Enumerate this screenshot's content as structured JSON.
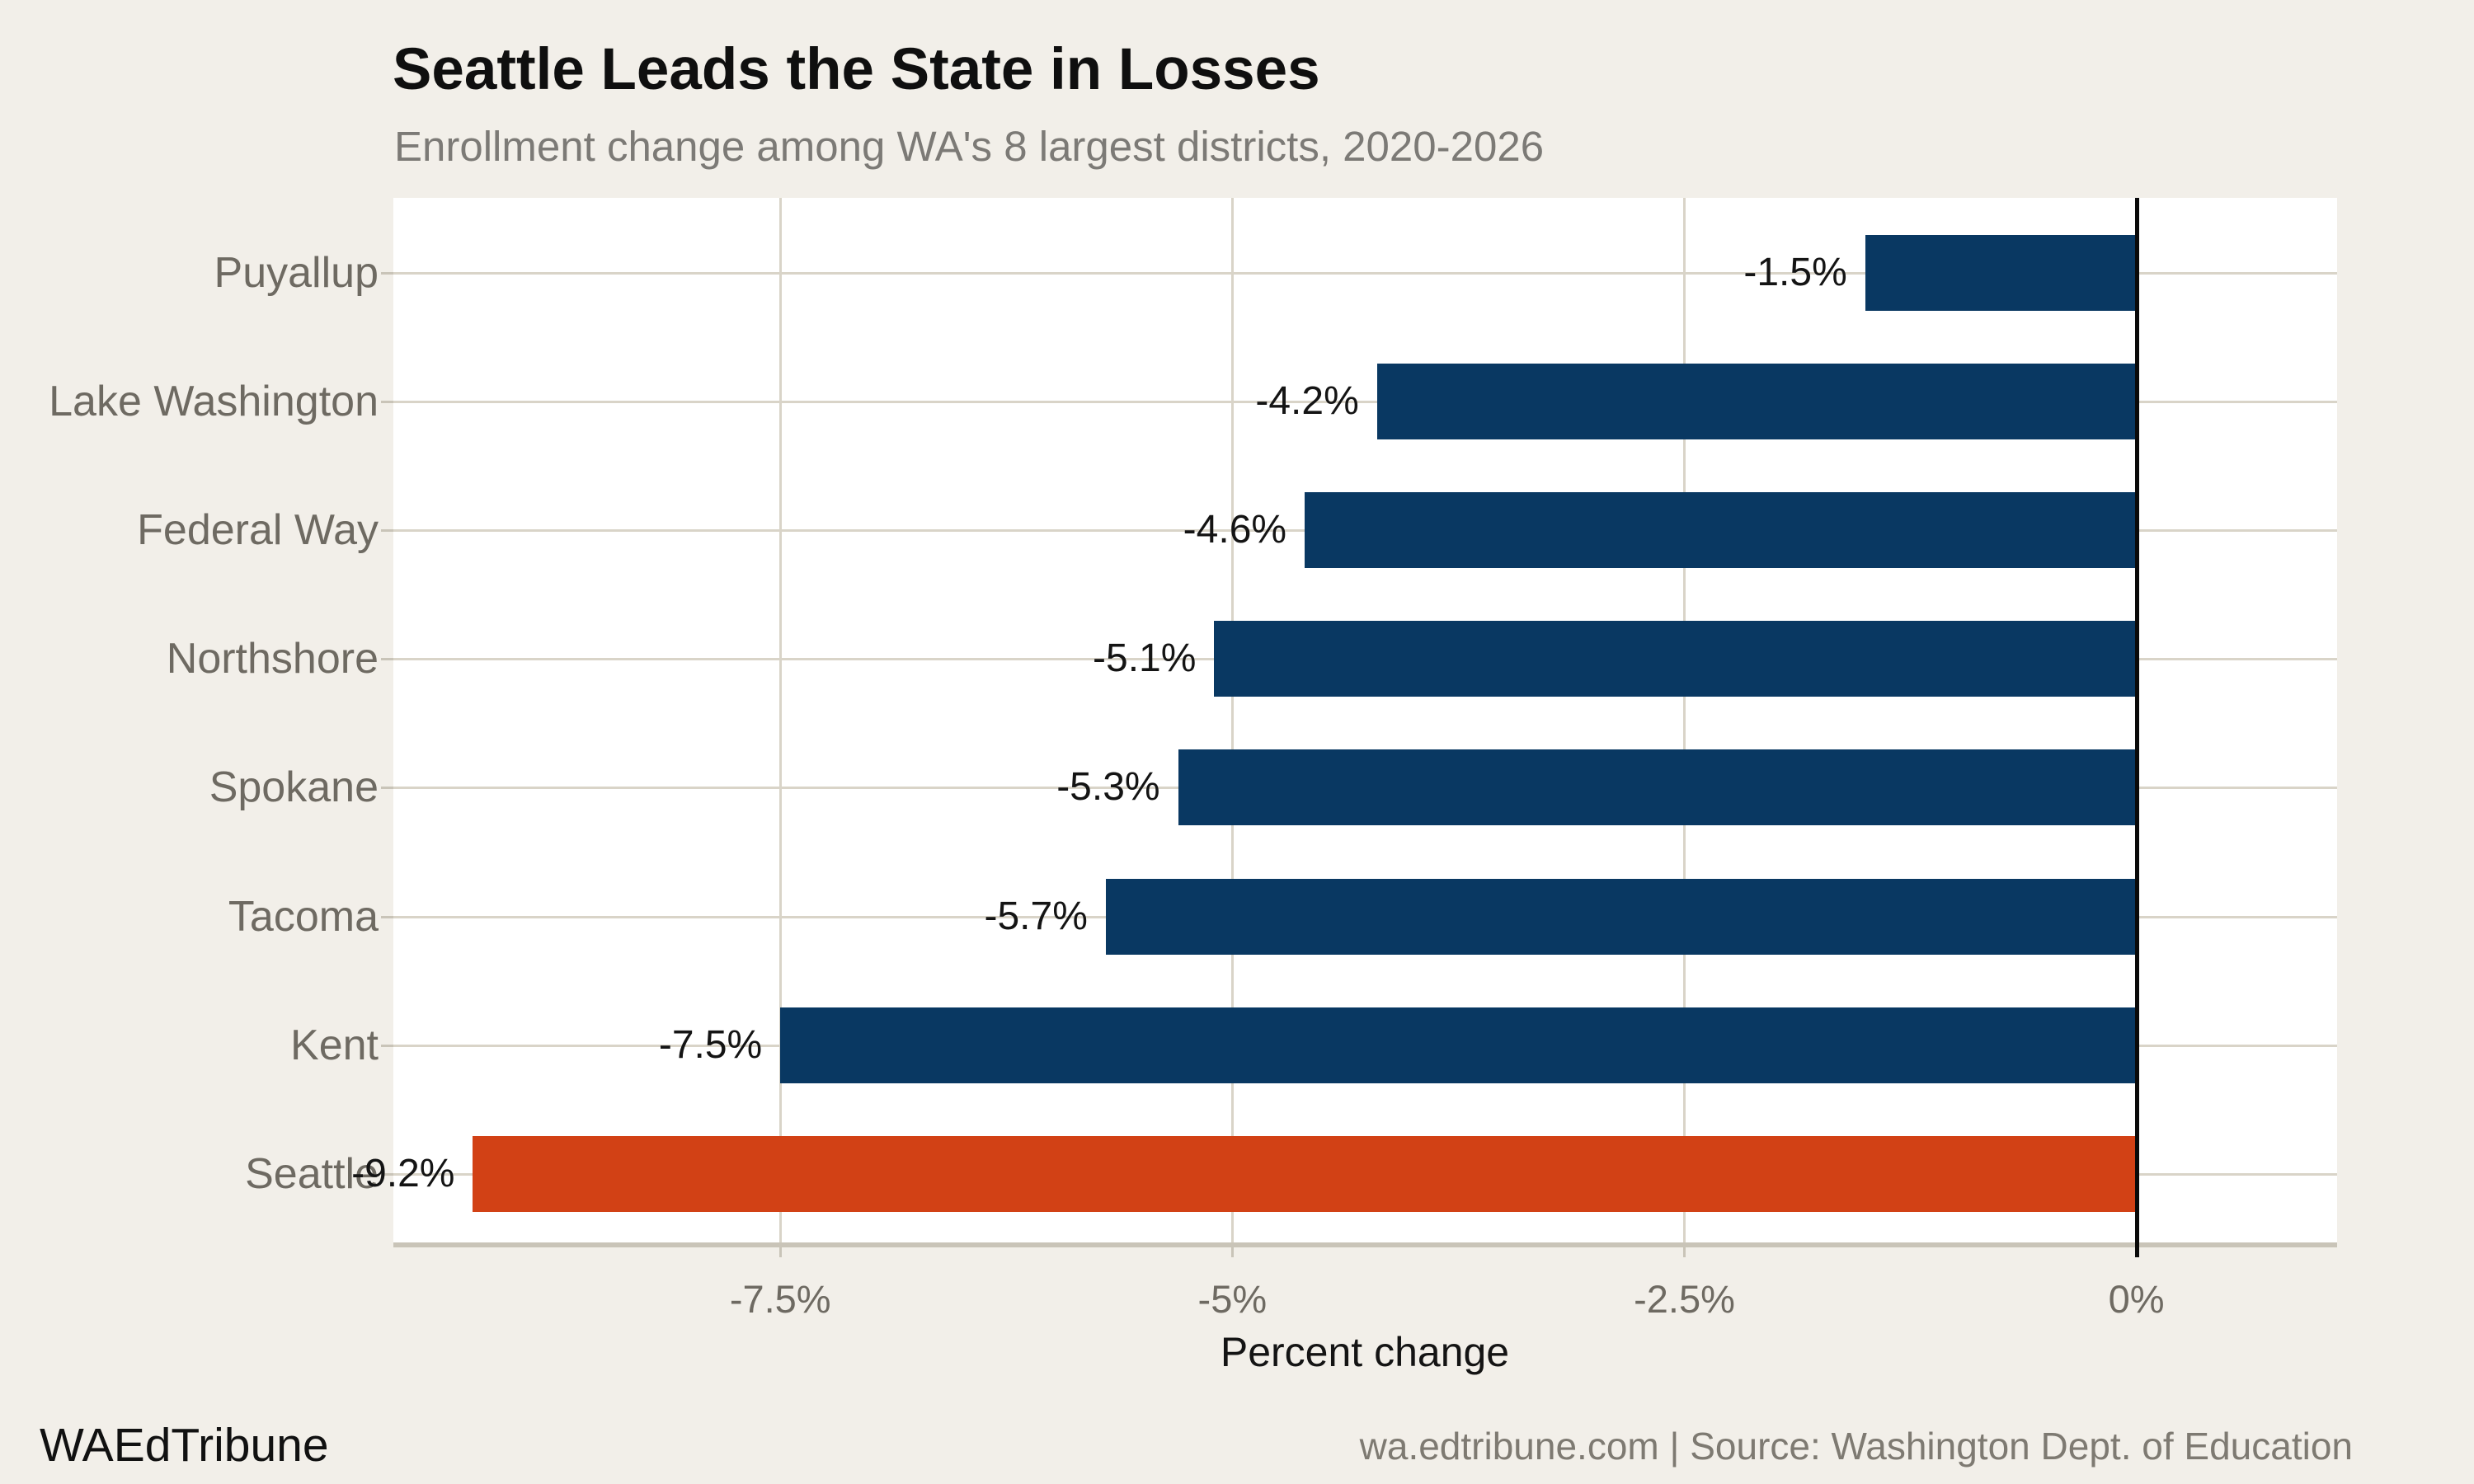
{
  "chart_data": {
    "type": "bar",
    "orientation": "horizontal",
    "title": "Seattle Leads the State in Losses",
    "subtitle": "Enrollment change among WA's 8 largest districts, 2020-2026",
    "xlabel": "Percent change",
    "categories": [
      "Puyallup",
      "Lake Washington",
      "Federal Way",
      "Northshore",
      "Spokane",
      "Tacoma",
      "Kent",
      "Seattle"
    ],
    "values": [
      -1.5,
      -4.2,
      -4.6,
      -5.1,
      -5.3,
      -5.7,
      -7.5,
      -9.2
    ],
    "value_labels": [
      "-1.5%",
      "-4.2%",
      "-4.6%",
      "-5.1%",
      "-5.3%",
      "-5.7%",
      "-7.5%",
      "-9.2%"
    ],
    "xticks": [
      {
        "value": -7.5,
        "label": "-7.5%"
      },
      {
        "value": -5,
        "label": "-5%"
      },
      {
        "value": -2.5,
        "label": "-2.5%"
      },
      {
        "value": 0,
        "label": "0%"
      }
    ],
    "xlim": [
      -9.64,
      1.11
    ],
    "grid": "on",
    "legend": "none",
    "highlight_category": "Seattle",
    "colors": {
      "bar": "#093862",
      "highlight": "#D24115",
      "background": "#F2EFE9",
      "panel": "#FFFFFF",
      "gridline": "#D9D4C8",
      "zero_line": "#0A0A0A",
      "axis_text": "#6E6A62"
    }
  },
  "footer": {
    "brand": "WAEdTribune",
    "source": "wa.edtribune.com | Source: Washington Dept. of Education"
  }
}
